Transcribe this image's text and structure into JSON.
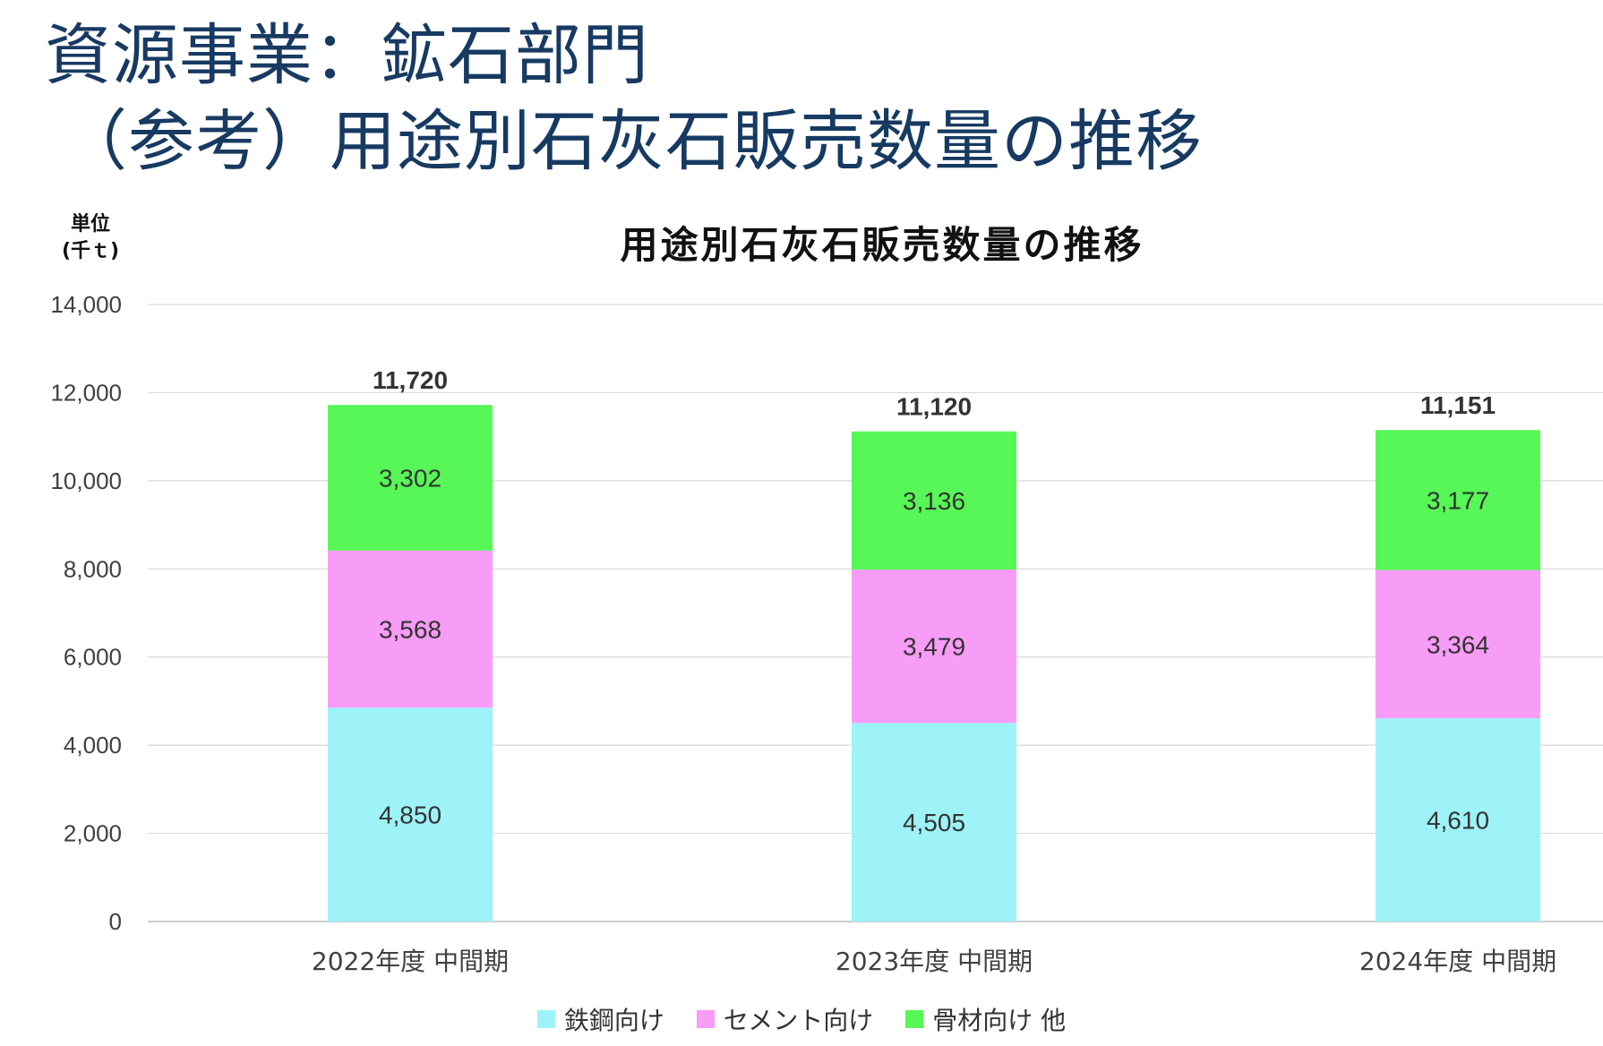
{
  "page": {
    "title_line1": "資源事業：鉱石部門",
    "title_line2": "（参考）用途別石灰石販売数量の推移",
    "unit_line1": "単位",
    "unit_line2": "(千ｔ)"
  },
  "chart_data": {
    "type": "bar",
    "stacked": true,
    "title": "用途別石灰石販売数量の推移",
    "categories": [
      "2022年度 中間期",
      "2023年度 中間期",
      "2024年度 中間期"
    ],
    "series": [
      {
        "name": "鉄鋼向け",
        "values": [
          4850,
          4505,
          4610
        ],
        "labels": [
          "4,850",
          "4,505",
          "4,610"
        ],
        "color": "#9df3f7"
      },
      {
        "name": "セメント向け",
        "values": [
          3568,
          3479,
          3364
        ],
        "labels": [
          "3,568",
          "3,479",
          "3,364"
        ],
        "color": "#f79cf7"
      },
      {
        "name": "骨材向け 他",
        "values": [
          3302,
          3136,
          3177
        ],
        "labels": [
          "3,302",
          "3,136",
          "3,177"
        ],
        "color": "#57f757"
      }
    ],
    "totals": [
      11720,
      11120,
      11151
    ],
    "total_labels": [
      "11,720",
      "11,120",
      "11,151"
    ],
    "ylim": [
      0,
      14000
    ],
    "yticks": [
      0,
      2000,
      4000,
      6000,
      8000,
      10000,
      12000,
      14000
    ],
    "ytick_labels": [
      "0",
      "2,000",
      "4,000",
      "6,000",
      "8,000",
      "10,000",
      "12,000",
      "14,000"
    ],
    "grid": true,
    "legend": "bottom"
  }
}
